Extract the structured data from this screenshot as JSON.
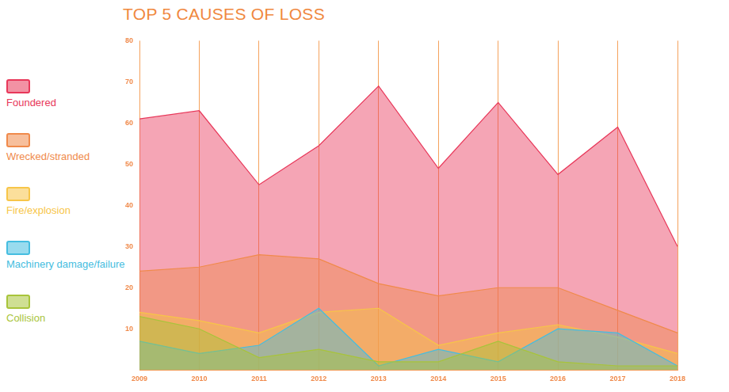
{
  "chart_data": {
    "type": "area",
    "title": "TOP 5 CAUSES OF LOSS",
    "categories": [
      "2009",
      "2010",
      "2011",
      "2012",
      "2013",
      "2014",
      "2015",
      "2016",
      "2017",
      "2018"
    ],
    "series": [
      {
        "name": "Foundered",
        "color": "#e8385a",
        "values": [
          61,
          63,
          45,
          54.5,
          69,
          49,
          65,
          47.5,
          59,
          30
        ]
      },
      {
        "name": "Wrecked/stranded",
        "color": "#f08a4b",
        "values": [
          24,
          25,
          28,
          27,
          21,
          18,
          20,
          20,
          14.5,
          9
        ]
      },
      {
        "name": "Fire/explosion",
        "color": "#f7c548",
        "values": [
          14,
          12,
          9,
          14,
          15,
          6,
          9,
          11,
          8,
          4
        ]
      },
      {
        "name": "Machinery damage/failure",
        "color": "#45bde0",
        "values": [
          7,
          4,
          6,
          15,
          1,
          5,
          2,
          10,
          9,
          1
        ]
      },
      {
        "name": "Collision",
        "color": "#a8c43a",
        "values": [
          13,
          10,
          3,
          5,
          2,
          2,
          7,
          2,
          1,
          1
        ]
      }
    ],
    "ylim": [
      0,
      80
    ],
    "yticks": [
      10,
      20,
      30,
      40,
      50,
      60,
      70,
      80
    ],
    "grid": "x",
    "legend": "left"
  }
}
